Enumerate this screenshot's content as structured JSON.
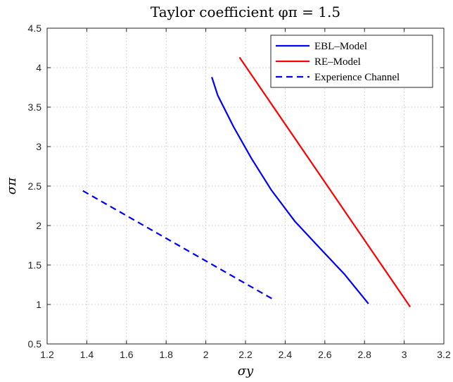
{
  "chart_data": {
    "type": "line",
    "title": "Taylor coefficient φπ = 1.5",
    "xlabel": "σy",
    "ylabel": "σπ",
    "xlim": [
      1.2,
      3.2
    ],
    "ylim": [
      0.5,
      4.5
    ],
    "xticks": [
      "1.2",
      "1.4",
      "1.6",
      "1.8",
      "2",
      "2.2",
      "2.4",
      "2.6",
      "2.8",
      "3",
      "3.2"
    ],
    "yticks": [
      "0.5",
      "1",
      "1.5",
      "2",
      "2.5",
      "3",
      "3.5",
      "4",
      "4.5"
    ],
    "grid": true,
    "legend_position": "top-right",
    "series": [
      {
        "name": "EBL–Model",
        "color": "#0000ff",
        "dash": "solid",
        "points": [
          [
            2.03,
            3.88
          ],
          [
            2.06,
            3.65
          ],
          [
            2.14,
            3.25
          ],
          [
            2.23,
            2.85
          ],
          [
            2.33,
            2.45
          ],
          [
            2.45,
            2.05
          ],
          [
            2.58,
            1.7
          ],
          [
            2.7,
            1.38
          ],
          [
            2.82,
            1.01
          ]
        ]
      },
      {
        "name": "RE–Model",
        "color": "#ff0000",
        "dash": "solid",
        "points": [
          [
            2.17,
            4.13
          ],
          [
            3.03,
            0.97
          ]
        ]
      },
      {
        "name": "Experience Channel",
        "color": "#0000ff",
        "dash": "dashed",
        "points": [
          [
            1.38,
            2.44
          ],
          [
            2.35,
            1.05
          ]
        ]
      }
    ]
  }
}
